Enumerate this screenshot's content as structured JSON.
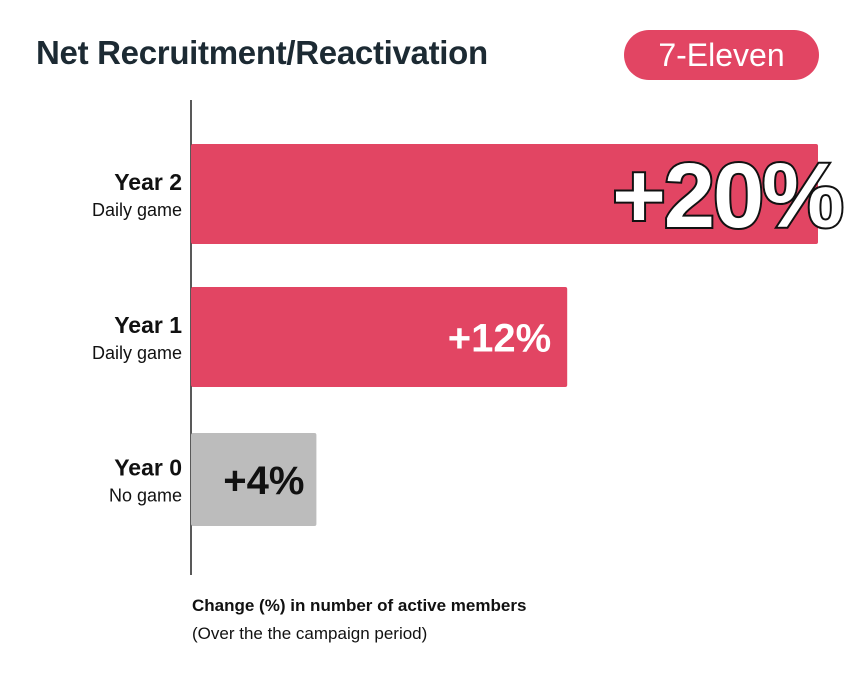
{
  "header": {
    "title": "Net Recruitment/Reactivation",
    "badge": "7-Eleven"
  },
  "colors": {
    "accent": "#e24563",
    "baseline_bar": "#bcbcbc",
    "title": "#1c2a33"
  },
  "chart_data": {
    "type": "bar",
    "orientation": "horizontal",
    "categories": [
      "Year 2",
      "Year 1",
      "Year 0"
    ],
    "sublabels": [
      "Daily game",
      "Daily game",
      "No game"
    ],
    "values": [
      20,
      12,
      4
    ],
    "value_labels": [
      "+20%",
      "+12%",
      "+4%"
    ],
    "unit": "%",
    "xlabel": "Change (%) in number of active members",
    "xlabel_sub": "(Over the the campaign period)",
    "xlim": [
      0,
      20
    ],
    "grid": false
  }
}
